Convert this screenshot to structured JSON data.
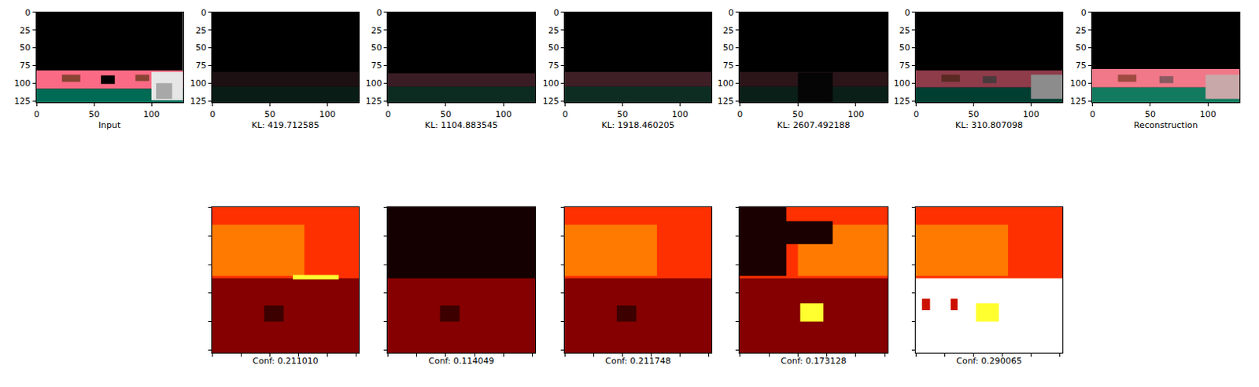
{
  "chart_data": [
    {
      "type": "image",
      "title": "Input",
      "xlim": [
        -0.5,
        127.5
      ],
      "ylim": [
        127.5,
        -0.5
      ],
      "xticks": [
        0,
        50,
        100
      ],
      "yticks": [
        0,
        25,
        50,
        75,
        100,
        125
      ],
      "regions": [
        {
          "x": [
            -0.5,
            127.5
          ],
          "y": [
            -0.5,
            127.5
          ],
          "color": "#000000"
        },
        {
          "x": [
            -0.5,
            127.5
          ],
          "y": [
            82,
            108
          ],
          "color": "#fb6a84"
        },
        {
          "x": [
            -0.5,
            127.5
          ],
          "y": [
            108,
            127.5
          ],
          "color": "#006b55"
        },
        {
          "x": [
            22,
            38
          ],
          "y": [
            88,
            98
          ],
          "color": "#8a4434"
        },
        {
          "x": [
            56,
            68
          ],
          "y": [
            89,
            101
          ],
          "color": "#000000"
        },
        {
          "x": [
            86,
            98
          ],
          "y": [
            88,
            97
          ],
          "color": "#8a4434"
        },
        {
          "x": [
            100,
            127.5
          ],
          "y": [
            84,
            124
          ],
          "color": "#e6e6e6"
        },
        {
          "x": [
            104,
            118
          ],
          "y": [
            100,
            122
          ],
          "color": "#a8a8a8"
        }
      ]
    },
    {
      "type": "image",
      "title": "KL: 419.712585",
      "xlim": [
        -0.5,
        127.5
      ],
      "ylim": [
        127.5,
        -0.5
      ],
      "xticks": [
        0,
        50,
        100
      ],
      "yticks": [
        0,
        25,
        50,
        75,
        100,
        125
      ],
      "regions": [
        {
          "x": [
            -0.5,
            127.5
          ],
          "y": [
            -0.5,
            127.5
          ],
          "color": "#000000"
        },
        {
          "x": [
            -0.5,
            127.5
          ],
          "y": [
            84,
            105
          ],
          "color": "#1c1013"
        },
        {
          "x": [
            -0.5,
            127.5
          ],
          "y": [
            105,
            127.5
          ],
          "color": "#0a1c16"
        }
      ]
    },
    {
      "type": "image",
      "title": "KL: 1104.883545",
      "xlim": [
        -0.5,
        127.5
      ],
      "ylim": [
        127.5,
        -0.5
      ],
      "xticks": [
        0,
        50,
        100
      ],
      "yticks": [
        0,
        25,
        50,
        75,
        100,
        125
      ],
      "regions": [
        {
          "x": [
            -0.5,
            127.5
          ],
          "y": [
            -0.5,
            127.5
          ],
          "color": "#000000"
        },
        {
          "x": [
            -0.5,
            127.5
          ],
          "y": [
            86,
            105
          ],
          "color": "#3a1c24"
        },
        {
          "x": [
            -0.5,
            127.5
          ],
          "y": [
            105,
            127.5
          ],
          "color": "#0c2b21"
        }
      ]
    },
    {
      "type": "image",
      "title": "KL: 1918.460205",
      "xlim": [
        -0.5,
        127.5
      ],
      "ylim": [
        127.5,
        -0.5
      ],
      "xticks": [
        0,
        50,
        100
      ],
      "yticks": [
        0,
        25,
        50,
        75,
        100,
        125
      ],
      "regions": [
        {
          "x": [
            -0.5,
            127.5
          ],
          "y": [
            -0.5,
            127.5
          ],
          "color": "#000000"
        },
        {
          "x": [
            -0.5,
            127.5
          ],
          "y": [
            84,
            105
          ],
          "color": "#3e1f26"
        },
        {
          "x": [
            -0.5,
            127.5
          ],
          "y": [
            105,
            127.5
          ],
          "color": "#0d2d22"
        }
      ]
    },
    {
      "type": "image",
      "title": "KL: 2607.492188",
      "xlim": [
        -0.5,
        127.5
      ],
      "ylim": [
        127.5,
        -0.5
      ],
      "xticks": [
        0,
        50,
        100
      ],
      "yticks": [
        0,
        25,
        50,
        75,
        100,
        125
      ],
      "regions": [
        {
          "x": [
            -0.5,
            127.5
          ],
          "y": [
            -0.5,
            127.5
          ],
          "color": "#000000"
        },
        {
          "x": [
            -0.5,
            127.5
          ],
          "y": [
            84,
            105
          ],
          "color": "#2b1519"
        },
        {
          "x": [
            -0.5,
            127.5
          ],
          "y": [
            105,
            127.5
          ],
          "color": "#0a1f18"
        },
        {
          "x": [
            50,
            80
          ],
          "y": [
            85,
            127.5
          ],
          "color": "#050505"
        }
      ]
    },
    {
      "type": "image",
      "title": "KL: 310.807098",
      "xlim": [
        -0.5,
        127.5
      ],
      "ylim": [
        127.5,
        -0.5
      ],
      "xticks": [
        0,
        50,
        100
      ],
      "yticks": [
        0,
        25,
        50,
        75,
        100,
        125
      ],
      "regions": [
        {
          "x": [
            -0.5,
            127.5
          ],
          "y": [
            -0.5,
            127.5
          ],
          "color": "#000000"
        },
        {
          "x": [
            -0.5,
            127.5
          ],
          "y": [
            82,
            106
          ],
          "color": "#8e3b4a"
        },
        {
          "x": [
            -0.5,
            127.5
          ],
          "y": [
            106,
            127.5
          ],
          "color": "#003e31"
        },
        {
          "x": [
            22,
            38
          ],
          "y": [
            88,
            98
          ],
          "color": "#5a2a22"
        },
        {
          "x": [
            58,
            70
          ],
          "y": [
            90,
            100
          ],
          "color": "#4a3a3e"
        },
        {
          "x": [
            100,
            127.5
          ],
          "y": [
            88,
            122
          ],
          "color": "#8c8c8c"
        }
      ]
    },
    {
      "type": "image",
      "title": "Reconstruction",
      "xlim": [
        -0.5,
        127.5
      ],
      "ylim": [
        127.5,
        -0.5
      ],
      "xticks": [
        0,
        50,
        100
      ],
      "yticks": [
        0,
        25,
        50,
        75,
        100,
        125
      ],
      "regions": [
        {
          "x": [
            -0.5,
            127.5
          ],
          "y": [
            -0.5,
            127.5
          ],
          "color": "#000000"
        },
        {
          "x": [
            -0.5,
            127.5
          ],
          "y": [
            80,
            106
          ],
          "color": "#f07888"
        },
        {
          "x": [
            -0.5,
            127.5
          ],
          "y": [
            106,
            127.5
          ],
          "color": "#127a5e"
        },
        {
          "x": [
            22,
            38
          ],
          "y": [
            88,
            98
          ],
          "color": "#a04a40"
        },
        {
          "x": [
            58,
            70
          ],
          "y": [
            90,
            100
          ],
          "color": "#8a5a60"
        },
        {
          "x": [
            98,
            127.5
          ],
          "y": [
            88,
            122
          ],
          "color": "#c8a8a8"
        }
      ]
    },
    {
      "type": "image",
      "title": "Conf: 0.211010",
      "xlim": [
        -0.5,
        127.5
      ],
      "ylim": [
        127.5,
        -0.5
      ],
      "xticks": [
        0,
        25,
        50,
        75,
        100,
        125
      ],
      "yticks": [
        0,
        25,
        50,
        75,
        100,
        125
      ],
      "tick_labels": false,
      "regions": [
        {
          "x": [
            -0.5,
            127.5
          ],
          "y": [
            -0.5,
            127.5
          ],
          "color": "#ff3000"
        },
        {
          "x": [
            -0.5,
            80
          ],
          "y": [
            15,
            60
          ],
          "color": "#ff7a00"
        },
        {
          "x": [
            -0.5,
            127.5
          ],
          "y": [
            62,
            127.5
          ],
          "color": "#850000"
        },
        {
          "x": [
            70,
            110
          ],
          "y": [
            59,
            63
          ],
          "color": "#ffff30"
        },
        {
          "x": [
            45,
            62
          ],
          "y": [
            86,
            100
          ],
          "color": "#3c0000"
        }
      ]
    },
    {
      "type": "image",
      "title": "Conf: 0.114049",
      "xlim": [
        -0.5,
        127.5
      ],
      "ylim": [
        127.5,
        -0.5
      ],
      "xticks": [
        0,
        25,
        50,
        75,
        100,
        125
      ],
      "yticks": [
        0,
        25,
        50,
        75,
        100,
        125
      ],
      "tick_labels": false,
      "regions": [
        {
          "x": [
            -0.5,
            127.5
          ],
          "y": [
            -0.5,
            127.5
          ],
          "color": "#140000"
        },
        {
          "x": [
            -0.5,
            127.5
          ],
          "y": [
            62,
            127.5
          ],
          "color": "#850000"
        },
        {
          "x": [
            45,
            62
          ],
          "y": [
            86,
            100
          ],
          "color": "#3c0000"
        }
      ]
    },
    {
      "type": "image",
      "title": "Conf: 0.211748",
      "xlim": [
        -0.5,
        127.5
      ],
      "ylim": [
        127.5,
        -0.5
      ],
      "xticks": [
        0,
        25,
        50,
        75,
        100,
        125
      ],
      "yticks": [
        0,
        25,
        50,
        75,
        100,
        125
      ],
      "tick_labels": false,
      "regions": [
        {
          "x": [
            -0.5,
            127.5
          ],
          "y": [
            -0.5,
            127.5
          ],
          "color": "#ff3000"
        },
        {
          "x": [
            -0.5,
            80
          ],
          "y": [
            15,
            60
          ],
          "color": "#ff7a00"
        },
        {
          "x": [
            -0.5,
            127.5
          ],
          "y": [
            62,
            127.5
          ],
          "color": "#850000"
        },
        {
          "x": [
            45,
            62
          ],
          "y": [
            86,
            100
          ],
          "color": "#3c0000"
        }
      ]
    },
    {
      "type": "image",
      "title": "Conf: 0.173128",
      "xlim": [
        -0.5,
        127.5
      ],
      "ylim": [
        127.5,
        -0.5
      ],
      "xticks": [
        0,
        25,
        50,
        75,
        100,
        125
      ],
      "yticks": [
        0,
        25,
        50,
        75,
        100,
        125
      ],
      "tick_labels": false,
      "regions": [
        {
          "x": [
            -0.5,
            127.5
          ],
          "y": [
            -0.5,
            127.5
          ],
          "color": "#ff3000"
        },
        {
          "x": [
            50,
            127.5
          ],
          "y": [
            15,
            60
          ],
          "color": "#ff7a00"
        },
        {
          "x": [
            -0.5,
            40
          ],
          "y": [
            -0.5,
            60
          ],
          "color": "#1a0000"
        },
        {
          "x": [
            30,
            80
          ],
          "y": [
            12,
            32
          ],
          "color": "#1a0000"
        },
        {
          "x": [
            -0.5,
            127.5
          ],
          "y": [
            62,
            127.5
          ],
          "color": "#850000"
        },
        {
          "x": [
            52,
            72
          ],
          "y": [
            84,
            100
          ],
          "color": "#ffff30"
        }
      ]
    },
    {
      "type": "image",
      "title": "Conf: 0.290065",
      "xlim": [
        -0.5,
        127.5
      ],
      "ylim": [
        127.5,
        -0.5
      ],
      "xticks": [
        0,
        25,
        50,
        75,
        100,
        125
      ],
      "yticks": [
        0,
        25,
        50,
        75,
        100,
        125
      ],
      "tick_labels": false,
      "regions": [
        {
          "x": [
            -0.5,
            127.5
          ],
          "y": [
            -0.5,
            127.5
          ],
          "color": "#ff3000"
        },
        {
          "x": [
            -0.5,
            80
          ],
          "y": [
            15,
            60
          ],
          "color": "#ff7a00"
        },
        {
          "x": [
            -0.5,
            127.5
          ],
          "y": [
            62,
            127.5
          ],
          "color": "#ffffff"
        },
        {
          "x": [
            52,
            72
          ],
          "y": [
            84,
            100
          ],
          "color": "#ffff30"
        },
        {
          "x": [
            5,
            12
          ],
          "y": [
            80,
            90
          ],
          "color": "#cc1000"
        },
        {
          "x": [
            30,
            36
          ],
          "y": [
            80,
            90
          ],
          "color": "#cc1000"
        }
      ]
    }
  ]
}
